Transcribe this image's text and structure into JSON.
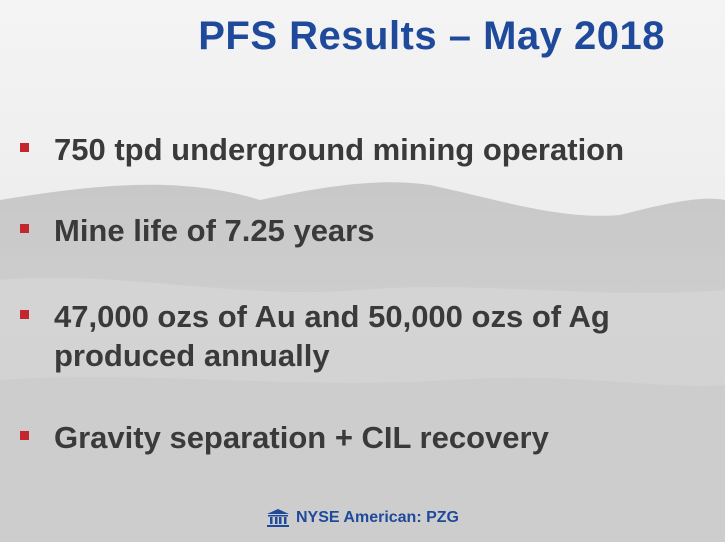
{
  "slide": {
    "title": "PFS Results – May 2018",
    "bullets": [
      "750 tpd underground mining operation",
      "Mine life of 7.25 years",
      "47,000 ozs of Au and 50,000 ozs of Ag produced annually",
      "Gravity separation + CIL recovery"
    ],
    "footer": {
      "icon": "building-columns-icon",
      "text": "NYSE American: PZG"
    },
    "colors": {
      "title": "#1f4a9c",
      "bullet_marker": "#c1272d",
      "body_text": "#3a3a3a"
    }
  }
}
